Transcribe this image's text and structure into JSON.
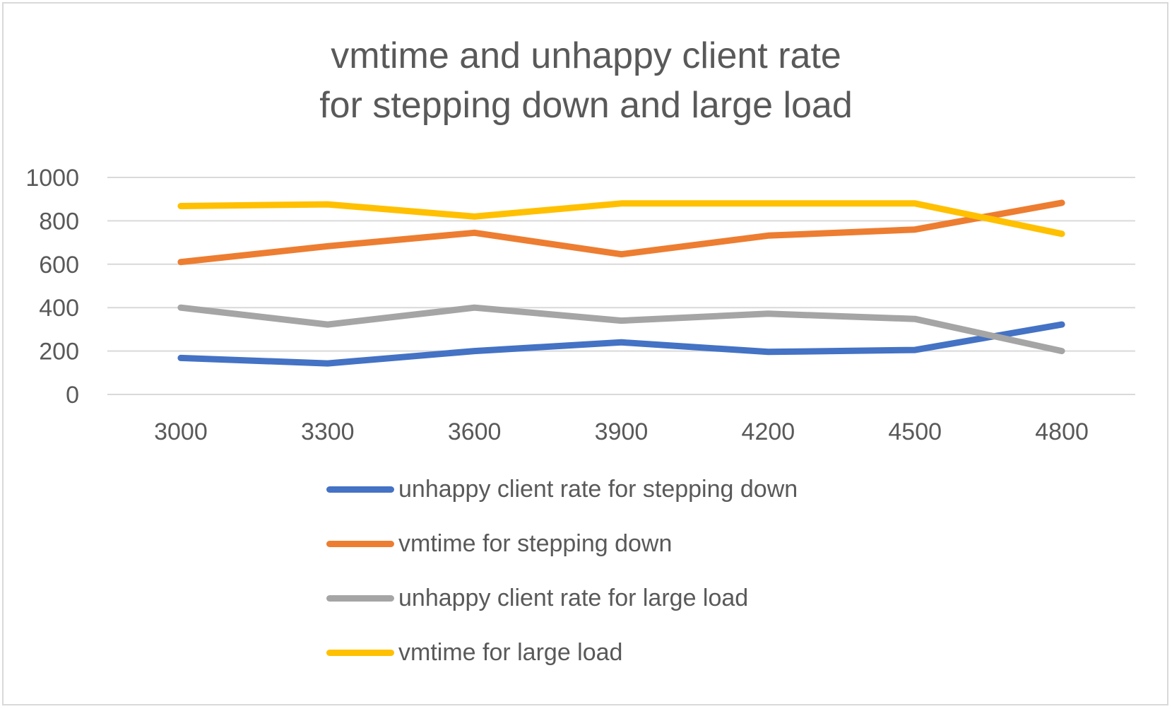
{
  "chart_data": {
    "type": "line",
    "title_lines": [
      "vmtime and unhappy client rate",
      "for stepping down and large load"
    ],
    "categories": [
      "3000",
      "3300",
      "3600",
      "3900",
      "4200",
      "4500",
      "4800"
    ],
    "y_ticks": [
      "0",
      "200",
      "400",
      "600",
      "800",
      "1000"
    ],
    "ylim": [
      0,
      1000
    ],
    "grid": true,
    "legend_position": "bottom",
    "series": [
      {
        "name": "unhappy client rate for stepping down",
        "color": "#4472c4",
        "values": [
          168,
          143,
          200,
          240,
          196,
          205,
          322
        ]
      },
      {
        "name": "vmtime for stepping down",
        "color": "#ed7d31",
        "values": [
          610,
          683,
          745,
          646,
          732,
          760,
          883
        ]
      },
      {
        "name": "unhappy client rate for large load",
        "color": "#a5a5a5",
        "values": [
          400,
          322,
          400,
          340,
          372,
          348,
          200
        ]
      },
      {
        "name": "vmtime for large load",
        "color": "#ffc000",
        "values": [
          868,
          876,
          820,
          880,
          880,
          880,
          740
        ]
      }
    ]
  }
}
